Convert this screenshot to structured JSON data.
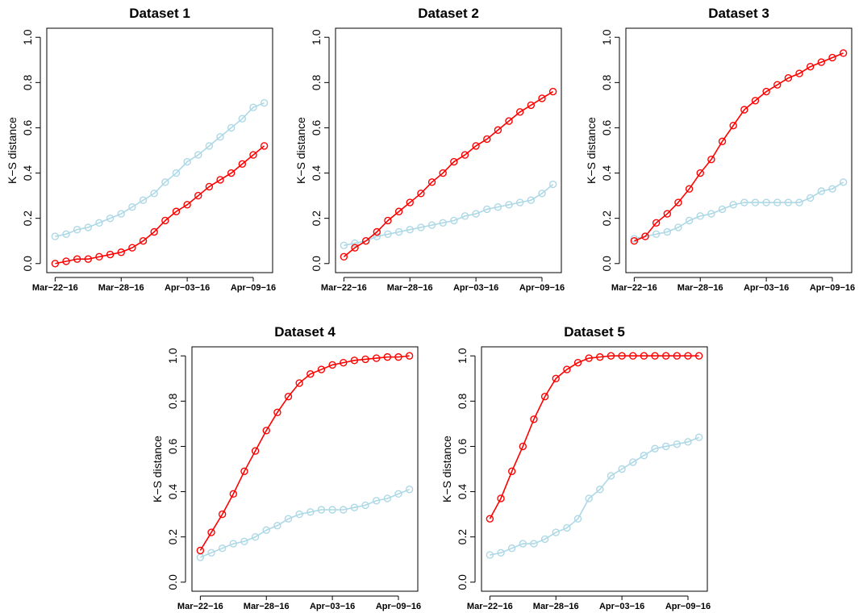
{
  "chart_data": [
    {
      "type": "line",
      "title": "Dataset 1",
      "ylabel": "K−S distance",
      "categories": [
        "Mar−22−16",
        null,
        null,
        null,
        null,
        null,
        "Mar−28−16",
        null,
        null,
        null,
        null,
        null,
        "Apr−03−16",
        null,
        null,
        null,
        null,
        null,
        "Apr−09−16",
        null
      ],
      "series": [
        {
          "color": "#add8e6",
          "values": [
            0.12,
            0.13,
            0.15,
            0.16,
            0.18,
            0.2,
            0.22,
            0.25,
            0.28,
            0.31,
            0.36,
            0.4,
            0.45,
            0.48,
            0.52,
            0.56,
            0.6,
            0.64,
            0.69,
            0.71
          ]
        },
        {
          "color": "#ff0000",
          "values": [
            0.0,
            0.01,
            0.02,
            0.02,
            0.03,
            0.04,
            0.05,
            0.07,
            0.1,
            0.14,
            0.19,
            0.23,
            0.26,
            0.3,
            0.34,
            0.37,
            0.4,
            0.44,
            0.48,
            0.52
          ]
        }
      ],
      "ylim": [
        -0.04,
        1.04
      ],
      "yticks": [
        {
          "value": 0,
          "label": "0.0"
        },
        0.2,
        0.4,
        0.6,
        0.8,
        {
          "value": 1,
          "label": "1.0"
        }
      ]
    },
    {
      "type": "line",
      "title": "Dataset 2",
      "ylabel": "K−S distance",
      "categories": [
        "Mar−22−16",
        null,
        null,
        null,
        null,
        null,
        "Mar−28−16",
        null,
        null,
        null,
        null,
        null,
        "Apr−03−16",
        null,
        null,
        null,
        null,
        null,
        "Apr−09−16",
        null
      ],
      "series": [
        {
          "color": "#add8e6",
          "values": [
            0.08,
            0.09,
            0.1,
            0.12,
            0.13,
            0.14,
            0.15,
            0.16,
            0.17,
            0.18,
            0.19,
            0.21,
            0.22,
            0.24,
            0.25,
            0.26,
            0.27,
            0.28,
            0.31,
            0.35
          ]
        },
        {
          "color": "#ff0000",
          "values": [
            0.03,
            0.07,
            0.1,
            0.14,
            0.19,
            0.23,
            0.27,
            0.31,
            0.36,
            0.4,
            0.45,
            0.48,
            0.52,
            0.55,
            0.59,
            0.63,
            0.67,
            0.7,
            0.73,
            0.76
          ]
        }
      ],
      "ylim": [
        -0.04,
        1.04
      ],
      "yticks": [
        {
          "value": 0,
          "label": "0.0"
        },
        0.2,
        0.4,
        0.6,
        0.8,
        {
          "value": 1,
          "label": "1.0"
        }
      ]
    },
    {
      "type": "line",
      "title": "Dataset 3",
      "ylabel": "K−S distance",
      "categories": [
        "Mar−22−16",
        null,
        null,
        null,
        null,
        null,
        "Mar−28−16",
        null,
        null,
        null,
        null,
        null,
        "Apr−03−16",
        null,
        null,
        null,
        null,
        null,
        "Apr−09−16",
        null
      ],
      "series": [
        {
          "color": "#add8e6",
          "values": [
            0.11,
            0.12,
            0.13,
            0.14,
            0.16,
            0.19,
            0.21,
            0.22,
            0.24,
            0.26,
            0.27,
            0.27,
            0.27,
            0.27,
            0.27,
            0.27,
            0.29,
            0.32,
            0.33,
            0.36
          ]
        },
        {
          "color": "#ff0000",
          "values": [
            0.1,
            0.12,
            0.18,
            0.22,
            0.27,
            0.33,
            0.4,
            0.46,
            0.54,
            0.61,
            0.68,
            0.72,
            0.76,
            0.79,
            0.82,
            0.84,
            0.87,
            0.89,
            0.91,
            0.93
          ]
        }
      ],
      "ylim": [
        -0.04,
        1.04
      ],
      "yticks": [
        {
          "value": 0,
          "label": "0.0"
        },
        0.2,
        0.4,
        0.6,
        0.8,
        {
          "value": 1,
          "label": "1.0"
        }
      ]
    },
    {
      "type": "line",
      "title": "Dataset 4",
      "ylabel": "K−S distance",
      "categories": [
        "Mar−22−16",
        null,
        null,
        null,
        null,
        null,
        "Mar−28−16",
        null,
        null,
        null,
        null,
        null,
        "Apr−03−16",
        null,
        null,
        null,
        null,
        null,
        "Apr−09−16",
        null
      ],
      "series": [
        {
          "color": "#add8e6",
          "values": [
            0.11,
            0.13,
            0.15,
            0.17,
            0.18,
            0.2,
            0.23,
            0.25,
            0.28,
            0.3,
            0.31,
            0.32,
            0.32,
            0.32,
            0.33,
            0.34,
            0.36,
            0.37,
            0.39,
            0.41
          ]
        },
        {
          "color": "#ff0000",
          "values": [
            0.14,
            0.22,
            0.3,
            0.39,
            0.49,
            0.58,
            0.67,
            0.75,
            0.82,
            0.88,
            0.92,
            0.94,
            0.96,
            0.97,
            0.98,
            0.985,
            0.99,
            0.995,
            0.995,
            1.0
          ]
        }
      ],
      "ylim": [
        -0.04,
        1.04
      ],
      "yticks": [
        {
          "value": 0,
          "label": "0.0"
        },
        0.2,
        0.4,
        0.6,
        0.8,
        {
          "value": 1,
          "label": "1.0"
        }
      ]
    },
    {
      "type": "line",
      "title": "Dataset 5",
      "ylabel": "K−S distance",
      "categories": [
        "Mar−22−16",
        null,
        null,
        null,
        null,
        null,
        "Mar−28−16",
        null,
        null,
        null,
        null,
        null,
        "Apr−03−16",
        null,
        null,
        null,
        null,
        null,
        "Apr−09−16",
        null
      ],
      "series": [
        {
          "color": "#add8e6",
          "values": [
            0.12,
            0.13,
            0.15,
            0.17,
            0.17,
            0.19,
            0.22,
            0.24,
            0.28,
            0.37,
            0.41,
            0.47,
            0.5,
            0.53,
            0.56,
            0.59,
            0.6,
            0.61,
            0.62,
            0.64
          ]
        },
        {
          "color": "#ff0000",
          "values": [
            0.28,
            0.37,
            0.49,
            0.6,
            0.72,
            0.82,
            0.9,
            0.94,
            0.97,
            0.99,
            0.995,
            1,
            1,
            1,
            1,
            1,
            1,
            1,
            1,
            1
          ]
        }
      ],
      "ylim": [
        -0.04,
        1.04
      ],
      "yticks": [
        {
          "value": 0,
          "label": "0.0"
        },
        0.2,
        0.4,
        0.6,
        0.8,
        {
          "value": 1,
          "label": "1.0"
        }
      ]
    }
  ]
}
